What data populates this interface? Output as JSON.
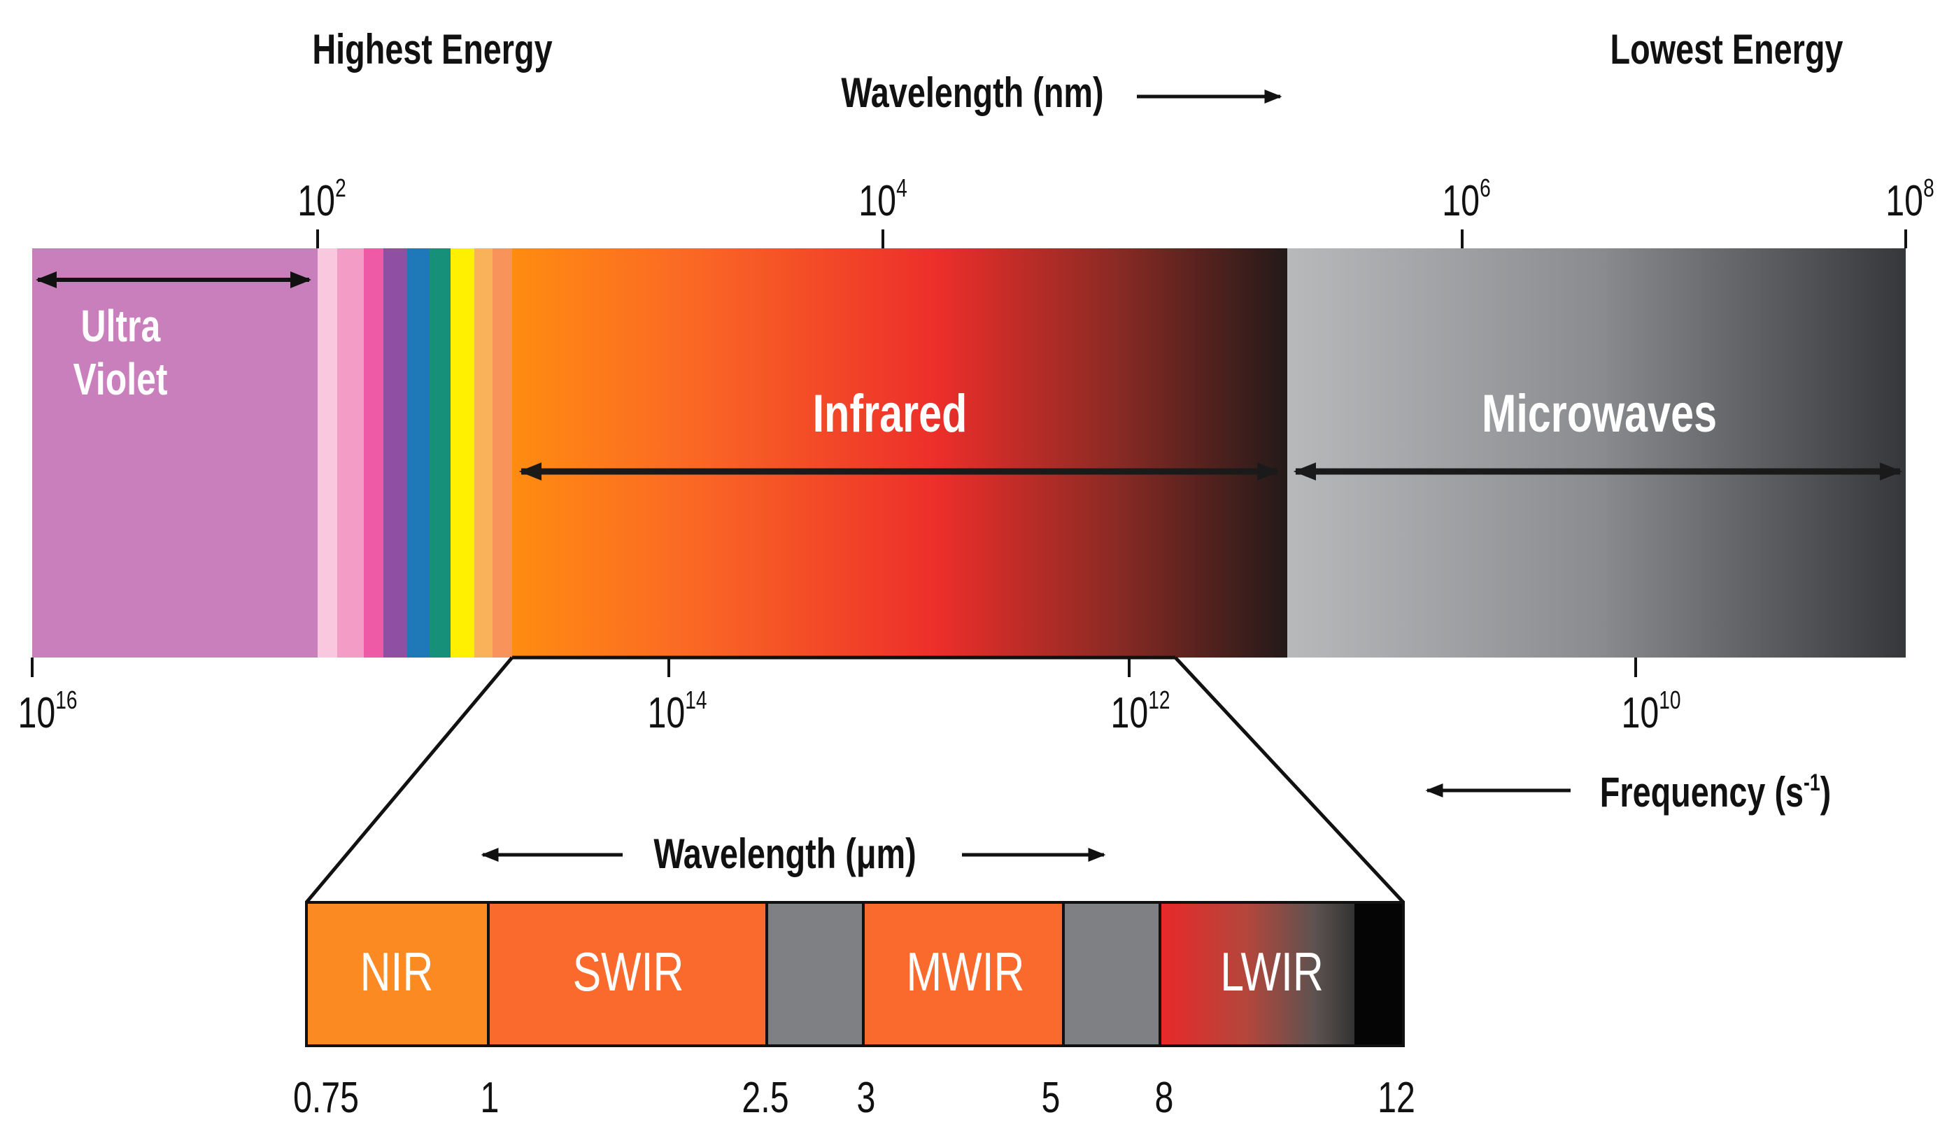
{
  "header": {
    "highest_energy": "Highest Energy",
    "lowest_energy": "Lowest Energy",
    "wavelength_nm": "Wavelength (nm)"
  },
  "wavelength_ticks": [
    {
      "base": "10",
      "exp": "2"
    },
    {
      "base": "10",
      "exp": "4"
    },
    {
      "base": "10",
      "exp": "6"
    },
    {
      "base": "10",
      "exp": "8"
    }
  ],
  "frequency_ticks": [
    {
      "base": "10",
      "exp": "16"
    },
    {
      "base": "10",
      "exp": "14"
    },
    {
      "base": "10",
      "exp": "12"
    },
    {
      "base": "10",
      "exp": "10"
    }
  ],
  "bands": {
    "uv_line1": "Ultra",
    "uv_line2": "Violet",
    "infrared": "Infrared",
    "microwaves": "Microwaves"
  },
  "frequency": {
    "label": "Frequency (s",
    "exp": "-1",
    "close": ")"
  },
  "ir_detail": {
    "wavelength_um": "Wavelength (μm)",
    "regions": [
      "NIR",
      "SWIR",
      "MWIR",
      "LWIR"
    ],
    "boundaries": [
      "0.75",
      "1",
      "2.5",
      "3",
      "5",
      "8",
      "12"
    ]
  },
  "colors": {
    "ultraviolet": "#c97fbb",
    "microwave_light": "#b4b6b8",
    "microwave_dark": "#3a3b3d",
    "infrared_orange": "#ff8a12",
    "infrared_red": "#ec2a2a",
    "gap_gray": "#7d7f82"
  }
}
